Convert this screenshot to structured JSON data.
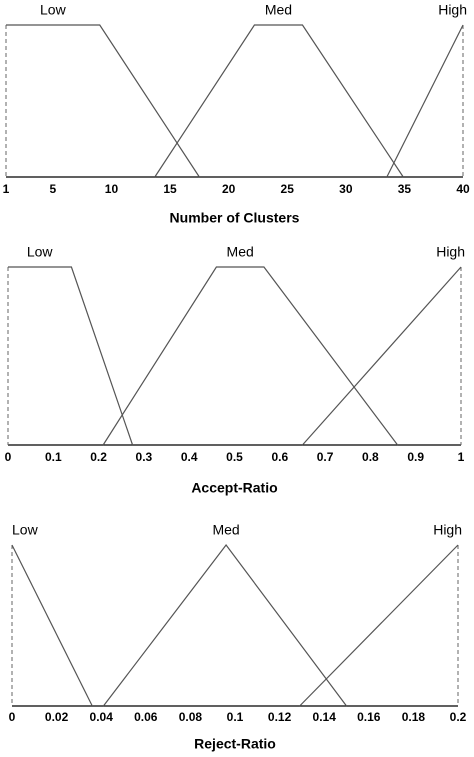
{
  "chart_data": [
    {
      "type": "line",
      "xlabel": "Number of Clusters",
      "xlim": [
        1,
        40
      ],
      "xticks": [
        1,
        5,
        10,
        15,
        20,
        25,
        30,
        35,
        40
      ],
      "ylim": [
        0,
        1
      ],
      "series": [
        {
          "name": "Low",
          "color": "#555555",
          "x": [
            1,
            9,
            17.5
          ],
          "values": [
            1,
            1,
            0
          ]
        },
        {
          "name": "Med",
          "color": "#555555",
          "x": [
            13.7,
            22.2,
            26.3,
            34.9
          ],
          "values": [
            0,
            1,
            1,
            0
          ]
        },
        {
          "name": "High",
          "color": "#555555",
          "x": [
            33.5,
            40
          ],
          "values": [
            0,
            1
          ]
        }
      ]
    },
    {
      "type": "line",
      "xlabel": "Accept-Ratio",
      "xlim": [
        0,
        1
      ],
      "xticks": [
        0,
        0.1,
        0.2,
        0.3,
        0.4,
        0.5,
        0.6,
        0.7,
        0.8,
        0.9,
        1
      ],
      "ylim": [
        0,
        1
      ],
      "series": [
        {
          "name": "Low",
          "color": "#555555",
          "x": [
            0,
            0.14,
            0.275
          ],
          "values": [
            1,
            1,
            0
          ]
        },
        {
          "name": "Med",
          "color": "#555555",
          "x": [
            0.21,
            0.46,
            0.565,
            0.86
          ],
          "values": [
            0,
            1,
            1,
            0
          ]
        },
        {
          "name": "High",
          "color": "#555555",
          "x": [
            0.65,
            1
          ],
          "values": [
            0,
            1
          ]
        }
      ]
    },
    {
      "type": "line",
      "xlabel": "Reject-Ratio",
      "xlim": [
        0,
        0.2
      ],
      "xticks": [
        0,
        0.02,
        0.04,
        0.06,
        0.08,
        0.1,
        0.12,
        0.14,
        0.16,
        0.18,
        0.2
      ],
      "ylim": [
        0,
        1
      ],
      "series": [
        {
          "name": "Low",
          "color": "#555555",
          "x": [
            0,
            0.036
          ],
          "values": [
            1,
            0
          ]
        },
        {
          "name": "Med",
          "color": "#555555",
          "x": [
            0.041,
            0.096,
            0.15
          ],
          "values": [
            0,
            1,
            0
          ]
        },
        {
          "name": "High",
          "color": "#555555",
          "x": [
            0.129,
            0.2
          ],
          "values": [
            0,
            1
          ]
        }
      ]
    }
  ]
}
